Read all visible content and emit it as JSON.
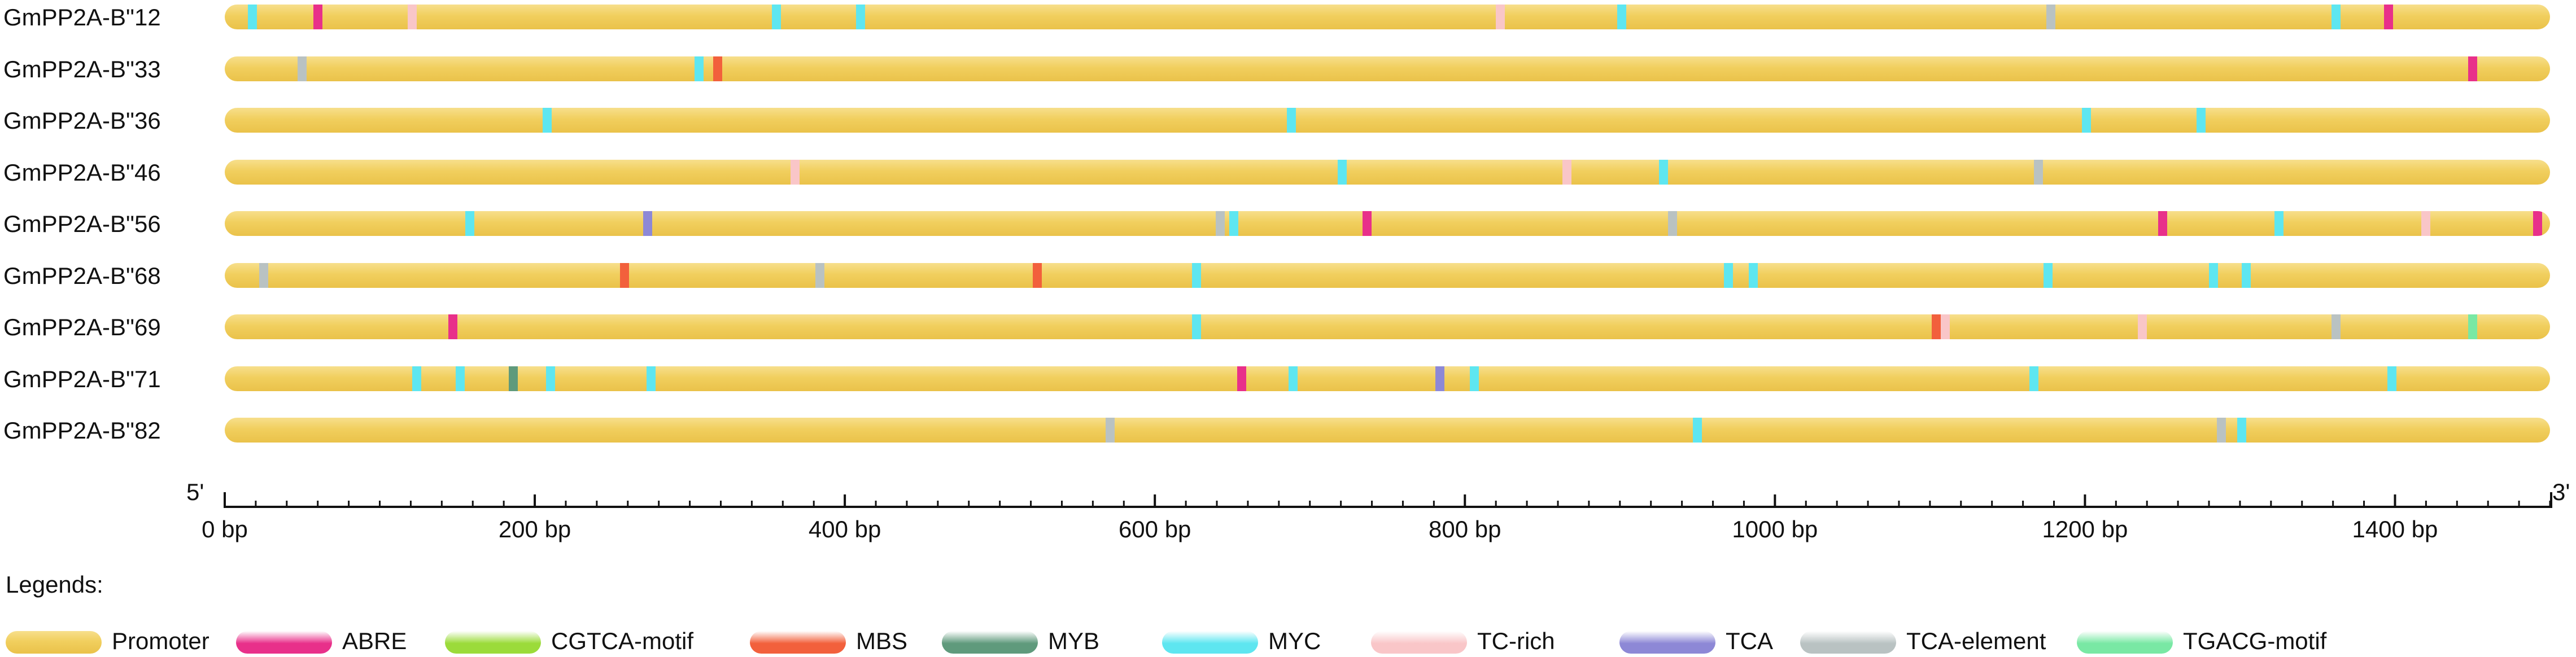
{
  "chart_data": {
    "type": "diagram",
    "xlim": [
      0,
      1500
    ],
    "x_ticks": [
      0,
      200,
      400,
      600,
      800,
      1000,
      1200,
      1400
    ],
    "x_tick_labels": [
      "0 bp",
      "200 bp",
      "400 bp",
      "600 bp",
      "800 bp",
      "1000 bp",
      "1200 bp",
      "1400 bp"
    ],
    "left_end_label": "5'",
    "right_end_label": "3'",
    "legend_title": "Legends:",
    "legend": [
      {
        "name": "Promoter",
        "color": "#f1cf5e"
      },
      {
        "name": "ABRE",
        "color": "#e8308a"
      },
      {
        "name": "CGTCA-motif",
        "color": "#9bdb3a"
      },
      {
        "name": "MBS",
        "color": "#f2603c"
      },
      {
        "name": "MYB",
        "color": "#5f9a7c"
      },
      {
        "name": "MYC",
        "color": "#5ee6f0"
      },
      {
        "name": "TC-rich",
        "color": "#f9c6c8"
      },
      {
        "name": "TCA",
        "color": "#8d88d6"
      },
      {
        "name": "TCA-element",
        "color": "#b9c2c2"
      },
      {
        "name": "TGACG-motif",
        "color": "#79e8a4"
      }
    ],
    "genes": [
      {
        "name": "GmPP2A-B\"12",
        "length": 1500,
        "elements": [
          {
            "type": "MYC",
            "position": 18
          },
          {
            "type": "ABRE",
            "position": 60
          },
          {
            "type": "TC-rich",
            "position": 121
          },
          {
            "type": "MYC",
            "position": 356
          },
          {
            "type": "MYC",
            "position": 410
          },
          {
            "type": "TC-rich",
            "position": 823
          },
          {
            "type": "MYC",
            "position": 901
          },
          {
            "type": "TCA-element",
            "position": 1178
          },
          {
            "type": "MYC",
            "position": 1362
          },
          {
            "type": "ABRE",
            "position": 1396
          }
        ]
      },
      {
        "name": "GmPP2A-B\"33",
        "length": 1500,
        "elements": [
          {
            "type": "TCA-element",
            "position": 50
          },
          {
            "type": "MYC",
            "position": 306
          },
          {
            "type": "MBS",
            "position": 318
          },
          {
            "type": "ABRE",
            "position": 1450
          }
        ]
      },
      {
        "name": "GmPP2A-B\"36",
        "length": 1500,
        "elements": [
          {
            "type": "MYC",
            "position": 208
          },
          {
            "type": "MYC",
            "position": 688
          },
          {
            "type": "MYC",
            "position": 1201
          },
          {
            "type": "MYC",
            "position": 1275
          }
        ]
      },
      {
        "name": "GmPP2A-B\"46",
        "length": 1500,
        "elements": [
          {
            "type": "TC-rich",
            "position": 368
          },
          {
            "type": "MYC",
            "position": 721
          },
          {
            "type": "TC-rich",
            "position": 866
          },
          {
            "type": "MYC",
            "position": 928
          },
          {
            "type": "TCA-element",
            "position": 1170
          }
        ]
      },
      {
        "name": "GmPP2A-B\"56",
        "length": 1500,
        "elements": [
          {
            "type": "MYC",
            "position": 158
          },
          {
            "type": "TCA",
            "position": 273
          },
          {
            "type": "TCA-element",
            "position": 642
          },
          {
            "type": "MYC",
            "position": 651
          },
          {
            "type": "ABRE",
            "position": 737
          },
          {
            "type": "TCA-element",
            "position": 934
          },
          {
            "type": "ABRE",
            "position": 1250
          },
          {
            "type": "MYC",
            "position": 1325
          },
          {
            "type": "TC-rich",
            "position": 1420
          },
          {
            "type": "ABRE",
            "position": 1492
          }
        ]
      },
      {
        "name": "GmPP2A-B\"68",
        "length": 1500,
        "elements": [
          {
            "type": "TCA-element",
            "position": 25
          },
          {
            "type": "MBS",
            "position": 258
          },
          {
            "type": "TCA-element",
            "position": 384
          },
          {
            "type": "MBS",
            "position": 524
          },
          {
            "type": "MYC",
            "position": 627
          },
          {
            "type": "MYC",
            "position": 970
          },
          {
            "type": "MYC",
            "position": 986
          },
          {
            "type": "MYC",
            "position": 1176
          },
          {
            "type": "MYC",
            "position": 1283
          },
          {
            "type": "MYC",
            "position": 1304
          }
        ]
      },
      {
        "name": "GmPP2A-B\"69",
        "length": 1500,
        "elements": [
          {
            "type": "ABRE",
            "position": 147
          },
          {
            "type": "MYC",
            "position": 627
          },
          {
            "type": "MBS",
            "position": 1104
          },
          {
            "type": "TC-rich",
            "position": 1110
          },
          {
            "type": "TC-rich",
            "position": 1237
          },
          {
            "type": "TCA-element",
            "position": 1362
          },
          {
            "type": "TGACG-motif",
            "position": 1450
          }
        ]
      },
      {
        "name": "GmPP2A-B\"71",
        "length": 1500,
        "elements": [
          {
            "type": "MYC",
            "position": 124
          },
          {
            "type": "MYC",
            "position": 152
          },
          {
            "type": "MYB",
            "position": 186
          },
          {
            "type": "MYC",
            "position": 210
          },
          {
            "type": "MYC",
            "position": 275
          },
          {
            "type": "ABRE",
            "position": 656
          },
          {
            "type": "MYC",
            "position": 689
          },
          {
            "type": "TCA",
            "position": 784
          },
          {
            "type": "MYC",
            "position": 806
          },
          {
            "type": "MYC",
            "position": 1167
          },
          {
            "type": "MYC",
            "position": 1398
          }
        ]
      },
      {
        "name": "GmPP2A-B\"82",
        "length": 1500,
        "elements": [
          {
            "type": "TCA-element",
            "position": 571
          },
          {
            "type": "MYC",
            "position": 950
          },
          {
            "type": "TCA-element",
            "position": 1288
          },
          {
            "type": "MYC",
            "position": 1301
          }
        ]
      }
    ]
  }
}
